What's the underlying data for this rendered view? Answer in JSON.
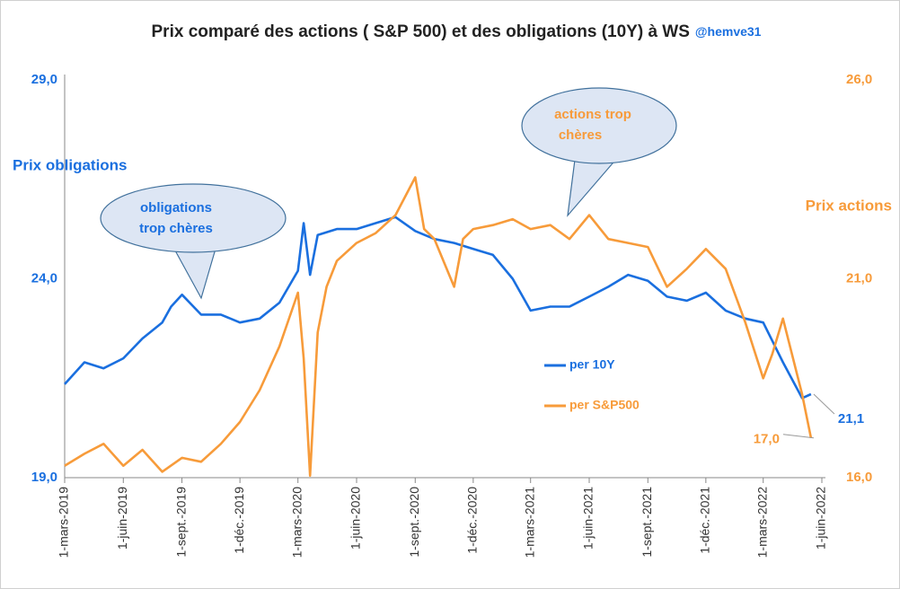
{
  "chart_data": {
    "type": "line",
    "title": "Prix comparé des actions ( S&P 500) et des obligations  (10Y) à WS",
    "credit": "@hemve31",
    "ylabel": "Prix obligations",
    "y2label": "Prix actions",
    "xlim": [
      "2019-03-01",
      "2022-06-01"
    ],
    "xticks": [
      {
        "value": "2019-03-01",
        "label": "1-mars-2019"
      },
      {
        "value": "2019-06-01",
        "label": "1-juin-2019"
      },
      {
        "value": "2019-09-01",
        "label": "1-sept.-2019"
      },
      {
        "value": "2019-12-01",
        "label": "1-déc.-2019"
      },
      {
        "value": "2020-03-01",
        "label": "1-mars-2020"
      },
      {
        "value": "2020-06-01",
        "label": "1-juin-2020"
      },
      {
        "value": "2020-09-01",
        "label": "1-sept.-2020"
      },
      {
        "value": "2020-12-01",
        "label": "1-déc.-2020"
      },
      {
        "value": "2021-03-01",
        "label": "1-mars-2021"
      },
      {
        "value": "2021-06-01",
        "label": "1-juin-2021"
      },
      {
        "value": "2021-09-01",
        "label": "1-sept.-2021"
      },
      {
        "value": "2021-12-01",
        "label": "1-déc.-2021"
      },
      {
        "value": "2022-03-01",
        "label": "1-mars-2022"
      },
      {
        "value": "2022-06-01",
        "label": "1-juin-2022"
      }
    ],
    "ylim": [
      19,
      29
    ],
    "yticks": [
      {
        "value": 19,
        "label": "19,0"
      },
      {
        "value": 24,
        "label": "24,0"
      },
      {
        "value": 29,
        "label": "29,0"
      }
    ],
    "y2lim": [
      16,
      26
    ],
    "y2ticks": [
      {
        "value": 16,
        "label": "16,0"
      },
      {
        "value": 21,
        "label": "21,0"
      },
      {
        "value": 26,
        "label": "26,0"
      }
    ],
    "grid": false,
    "series": [
      {
        "name": "per 10Y",
        "color": "#1a6fdf",
        "x": [
          "2019-03-01",
          "2019-04-01",
          "2019-05-01",
          "2019-06-01",
          "2019-07-01",
          "2019-08-01",
          "2019-08-15",
          "2019-09-01",
          "2019-10-01",
          "2019-11-01",
          "2019-12-01",
          "2020-01-01",
          "2020-02-01",
          "2020-03-01",
          "2020-03-10",
          "2020-03-20",
          "2020-04-01",
          "2020-05-01",
          "2020-06-01",
          "2020-07-01",
          "2020-08-01",
          "2020-09-01",
          "2020-10-01",
          "2020-11-01",
          "2020-12-01",
          "2021-01-01",
          "2021-02-01",
          "2021-03-01",
          "2021-04-01",
          "2021-05-01",
          "2021-06-01",
          "2021-07-01",
          "2021-08-01",
          "2021-09-01",
          "2021-10-01",
          "2021-11-01",
          "2021-12-01",
          "2022-01-01",
          "2022-02-01",
          "2022-03-01",
          "2022-04-01",
          "2022-05-01",
          "2022-05-15"
        ],
        "values": [
          21.35,
          21.9,
          21.75,
          22.0,
          22.5,
          22.9,
          23.3,
          23.6,
          23.1,
          23.1,
          22.9,
          23.0,
          23.4,
          24.2,
          25.4,
          24.1,
          25.1,
          25.25,
          25.25,
          25.4,
          25.55,
          25.2,
          25.0,
          24.9,
          24.75,
          24.6,
          24.0,
          23.2,
          23.3,
          23.3,
          23.55,
          23.8,
          24.1,
          23.95,
          23.55,
          23.45,
          23.65,
          23.2,
          23.0,
          22.9,
          21.9,
          21.0,
          21.1
        ],
        "value_labels": [
          null,
          null,
          null,
          null,
          null,
          null,
          null,
          null,
          null,
          null,
          null,
          null,
          null,
          null,
          null,
          null,
          null,
          null,
          null,
          null,
          null,
          null,
          null,
          null,
          null,
          null,
          null,
          null,
          null,
          null,
          null,
          null,
          null,
          null,
          null,
          null,
          null,
          null,
          null,
          null,
          null,
          null,
          "21,1"
        ]
      },
      {
        "name": "per S&P500",
        "color": "#f79b3a",
        "axis": "y2",
        "x": [
          "2019-03-01",
          "2019-04-01",
          "2019-05-01",
          "2019-06-01",
          "2019-07-01",
          "2019-08-01",
          "2019-09-01",
          "2019-10-01",
          "2019-11-01",
          "2019-12-01",
          "2020-01-01",
          "2020-02-01",
          "2020-03-01",
          "2020-03-10",
          "2020-03-20",
          "2020-04-01",
          "2020-04-15",
          "2020-05-01",
          "2020-06-01",
          "2020-07-01",
          "2020-08-01",
          "2020-09-01",
          "2020-09-15",
          "2020-10-01",
          "2020-11-01",
          "2020-11-15",
          "2020-12-01",
          "2021-01-01",
          "2021-02-01",
          "2021-03-01",
          "2021-04-01",
          "2021-05-01",
          "2021-06-01",
          "2021-07-01",
          "2021-08-01",
          "2021-09-01",
          "2021-10-01",
          "2021-11-01",
          "2021-12-01",
          "2022-01-01",
          "2022-02-01",
          "2022-03-01",
          "2022-03-15",
          "2022-04-01",
          "2022-05-01",
          "2022-05-15"
        ],
        "values": [
          16.3,
          16.6,
          16.85,
          16.3,
          16.7,
          16.15,
          16.5,
          16.4,
          16.85,
          17.4,
          18.2,
          19.3,
          20.65,
          19.0,
          16.05,
          19.65,
          20.8,
          21.45,
          21.9,
          22.15,
          22.6,
          23.55,
          22.25,
          22.0,
          20.8,
          22.0,
          22.25,
          22.35,
          22.5,
          22.25,
          22.35,
          22.0,
          22.6,
          22.0,
          21.9,
          21.8,
          20.8,
          21.25,
          21.75,
          21.25,
          19.9,
          18.5,
          19.1,
          20.0,
          18.1,
          17.0
        ],
        "value_labels": [
          null,
          null,
          null,
          null,
          null,
          null,
          null,
          null,
          null,
          null,
          null,
          null,
          null,
          null,
          null,
          null,
          null,
          null,
          null,
          null,
          null,
          null,
          null,
          null,
          null,
          null,
          null,
          null,
          null,
          null,
          null,
          null,
          null,
          null,
          null,
          null,
          null,
          null,
          null,
          null,
          null,
          null,
          null,
          null,
          null,
          "17,0"
        ]
      }
    ],
    "annotations": [
      {
        "lines": [
          "obligations",
          "trop chères"
        ]
      },
      {
        "lines": [
          "actions trop",
          "chères"
        ]
      }
    ]
  }
}
